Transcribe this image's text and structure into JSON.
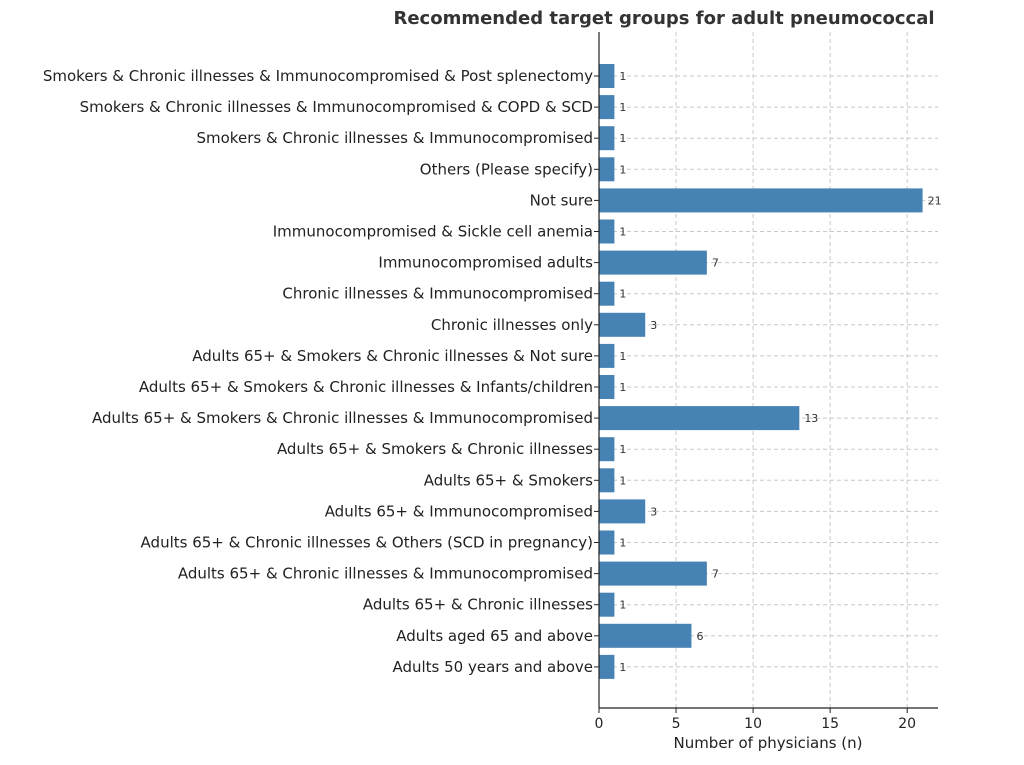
{
  "chart_data": {
    "type": "bar",
    "orientation": "horizontal",
    "title": "Recommended target groups for adult pneumococcal",
    "xlabel": "Number of physicians (n)",
    "ylabel": "",
    "xlim": [
      0,
      22
    ],
    "xticks": [
      0,
      5,
      10,
      15,
      20
    ],
    "grid": true,
    "bar_color": "#4682b4",
    "categories": [
      "Smokers & Chronic illnesses & Immunocompromised & Post splenectomy",
      "Smokers & Chronic illnesses & Immunocompromised & COPD & SCD",
      "Smokers & Chronic illnesses & Immunocompromised",
      "Others (Please specify)",
      "Not sure",
      "Immunocompromised & Sickle cell anemia",
      "Immunocompromised adults",
      "Chronic illnesses & Immunocompromised",
      "Chronic illnesses only",
      "Adults 65+ & Smokers & Chronic illnesses & Not sure",
      "Adults 65+ & Smokers & Chronic illnesses & Infants/children",
      "Adults 65+ & Smokers & Chronic illnesses & Immunocompromised",
      "Adults 65+ & Smokers & Chronic illnesses",
      "Adults 65+ & Smokers",
      "Adults 65+ & Immunocompromised",
      "Adults 65+ & Chronic illnesses & Others (SCD in pregnancy)",
      "Adults 65+ & Chronic illnesses & Immunocompromised",
      "Adults 65+ & Chronic illnesses",
      "Adults aged 65 and above",
      "Adults 50 years and above"
    ],
    "values": [
      1,
      1,
      1,
      1,
      21,
      1,
      7,
      1,
      3,
      1,
      1,
      13,
      1,
      1,
      3,
      1,
      7,
      1,
      6,
      1
    ]
  }
}
